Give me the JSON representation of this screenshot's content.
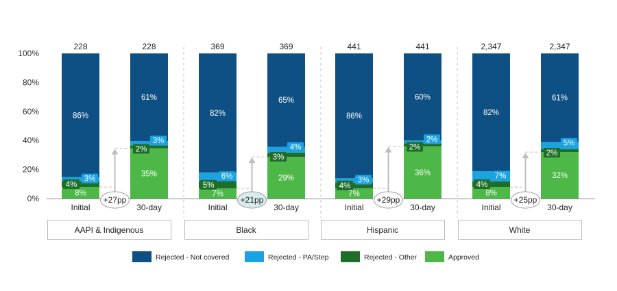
{
  "chart_data": {
    "type": "bar",
    "stacked": true,
    "normalized_percent": true,
    "y_ticks": [
      "0%",
      "20%",
      "40%",
      "60%",
      "80%",
      "100%"
    ],
    "ylim": [
      0,
      100
    ],
    "bar_labels": [
      "Initial",
      "30-day"
    ],
    "series": [
      {
        "name": "Approved",
        "color": "#4db848"
      },
      {
        "name": "Rejected - Other",
        "color": "#1e6e2a"
      },
      {
        "name": "Rejected - PA/Step",
        "color": "#1aa3e0"
      },
      {
        "name": "Rejected - Not covered",
        "color": "#0e4f84"
      }
    ],
    "legend_order": [
      "Rejected - Not covered",
      "Rejected - PA/Step",
      "Rejected - Other",
      "Approved"
    ],
    "legend_position": "bottom",
    "groups": [
      {
        "name": "AAPI & Indigenous",
        "change": "+27pp",
        "bars": [
          {
            "total": "228",
            "approved": 8,
            "other": 4,
            "pa_step": 3,
            "not_covered": 86
          },
          {
            "total": "228",
            "approved": 35,
            "other": 2,
            "pa_step": 3,
            "not_covered": 61
          }
        ],
        "labels": [
          {
            "approved": "8%",
            "other": "4%",
            "pa_step": "3%",
            "not_covered": "86%"
          },
          {
            "approved": "35%",
            "other": "2%",
            "pa_step": "3%",
            "not_covered": "61%"
          }
        ]
      },
      {
        "name": "Black",
        "change": "+21pp",
        "bars": [
          {
            "total": "369",
            "approved": 7,
            "other": 5,
            "pa_step": 6,
            "not_covered": 82
          },
          {
            "total": "369",
            "approved": 29,
            "other": 3,
            "pa_step": 4,
            "not_covered": 65
          }
        ],
        "labels": [
          {
            "approved": "7%",
            "other": "5%",
            "pa_step": "6%",
            "not_covered": "82%"
          },
          {
            "approved": "29%",
            "other": "3%",
            "pa_step": "4%",
            "not_covered": "65%"
          }
        ]
      },
      {
        "name": "Hispanic",
        "change": "+29pp",
        "bars": [
          {
            "total": "441",
            "approved": 7,
            "other": 4,
            "pa_step": 3,
            "not_covered": 86
          },
          {
            "total": "441",
            "approved": 36,
            "other": 2,
            "pa_step": 2,
            "not_covered": 60
          }
        ],
        "labels": [
          {
            "approved": "7%",
            "other": "4%",
            "pa_step": "3%",
            "not_covered": "86%"
          },
          {
            "approved": "36%",
            "other": "2%",
            "pa_step": "2%",
            "not_covered": "60%"
          }
        ]
      },
      {
        "name": "White",
        "change": "+25pp",
        "bars": [
          {
            "total": "2,347",
            "approved": 8,
            "other": 4,
            "pa_step": 7,
            "not_covered": 82
          },
          {
            "total": "2,347",
            "approved": 32,
            "other": 2,
            "pa_step": 5,
            "not_covered": 61
          }
        ],
        "labels": [
          {
            "approved": "8%",
            "other": "4%",
            "pa_step": "7%",
            "not_covered": "82%"
          },
          {
            "approved": "32%",
            "other": "2%",
            "pa_step": "5%",
            "not_covered": "61%"
          }
        ]
      }
    ]
  }
}
